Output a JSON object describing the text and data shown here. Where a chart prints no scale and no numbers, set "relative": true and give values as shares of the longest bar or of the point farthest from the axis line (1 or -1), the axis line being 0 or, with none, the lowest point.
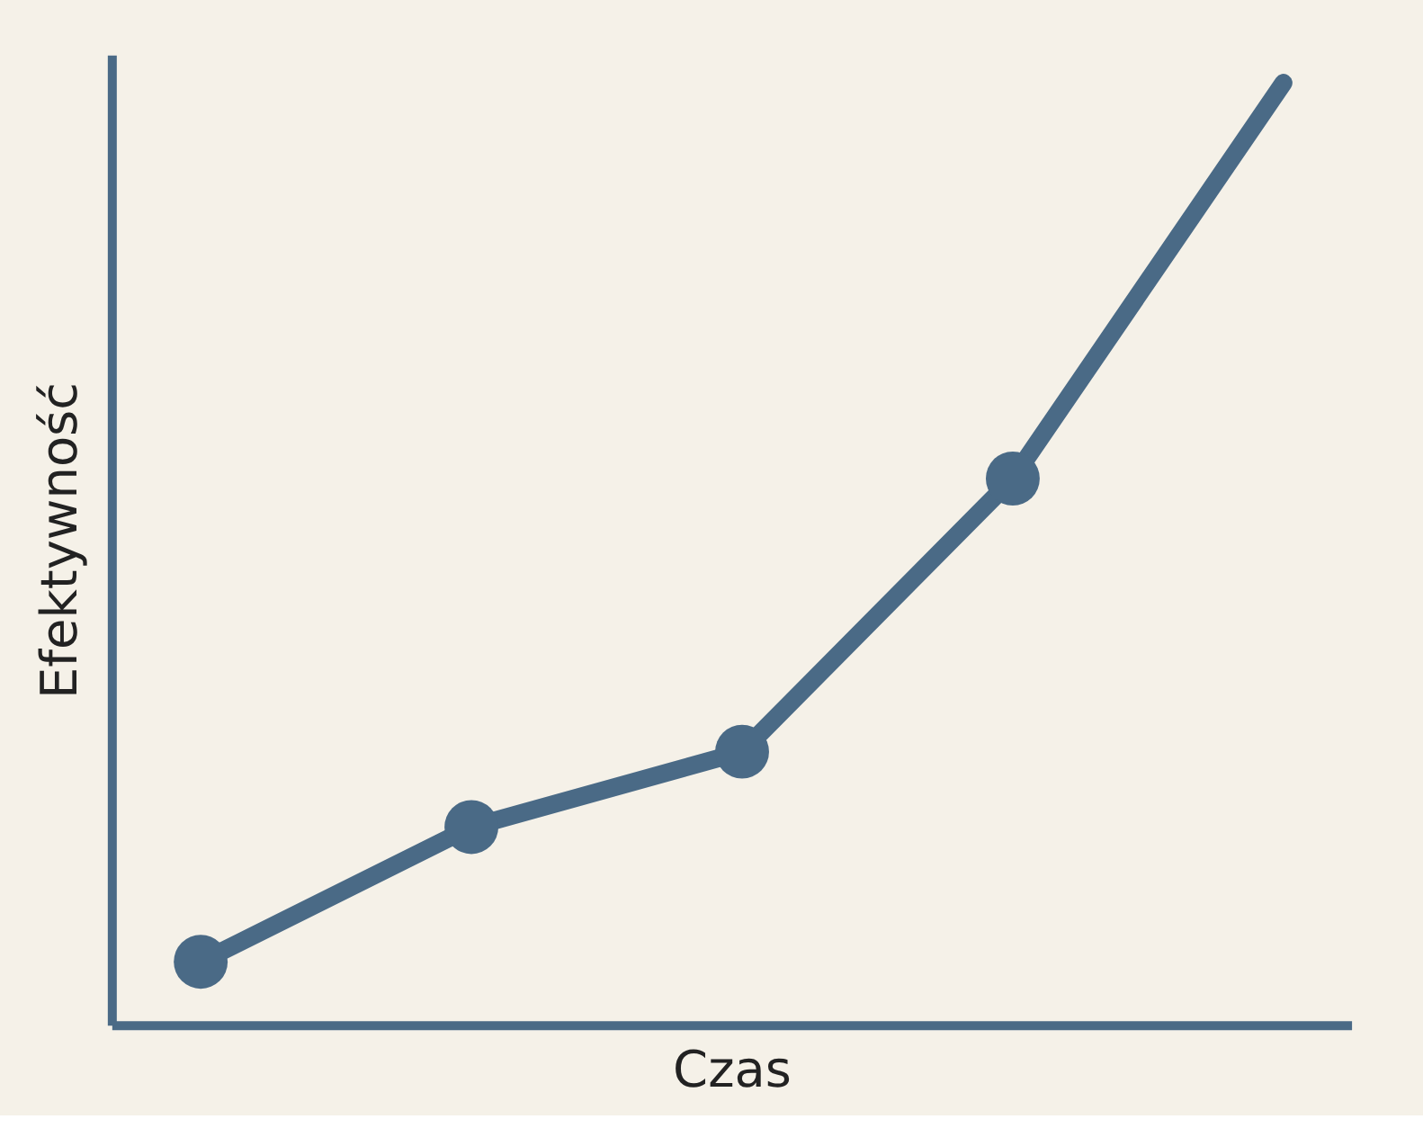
{
  "chart_data": {
    "type": "line",
    "relative": true,
    "xlabel": "Czas",
    "ylabel": "Efektywność",
    "categories": [
      null,
      null,
      null,
      null,
      null
    ],
    "series": [
      {
        "color": "#4a6a86",
        "values": [
          0.067,
          0.21,
          0.29,
          0.58,
          1.0
        ]
      }
    ],
    "marker": "circle",
    "line_style": "solid",
    "grid": false
  }
}
